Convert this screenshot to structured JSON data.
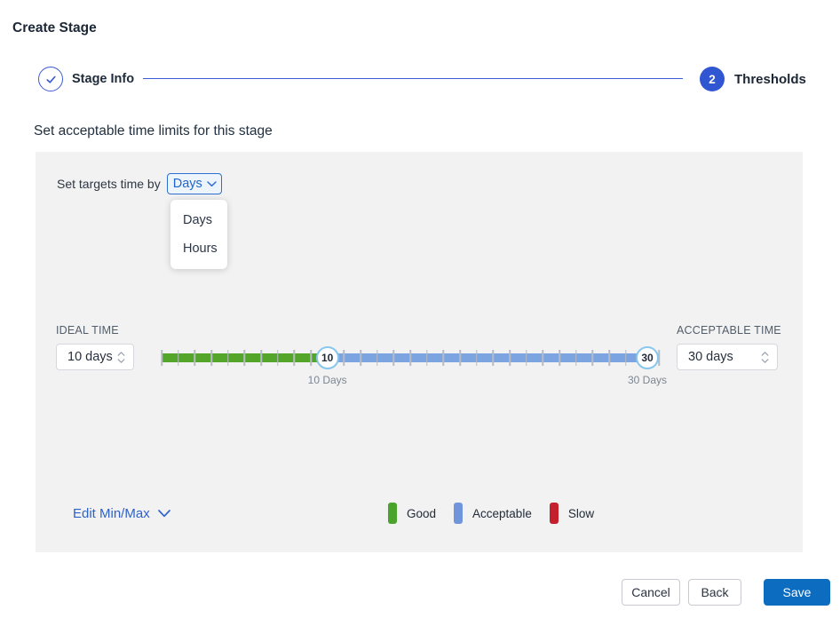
{
  "page_title": "Create Stage",
  "stepper": {
    "steps": [
      {
        "label": "Stage Info",
        "status": "complete",
        "icon": "check-icon"
      },
      {
        "label": "Thresholds",
        "status": "active",
        "number": "2"
      }
    ]
  },
  "section_heading": "Set acceptable time limits for this stage",
  "panel": {
    "targets_label": "Set targets time by",
    "unit_dropdown": {
      "value": "Days",
      "open": true,
      "options": [
        "Days",
        "Hours"
      ]
    },
    "ideal_time": {
      "label": "IDEAL TIME",
      "value": "10 days"
    },
    "acceptable_time": {
      "label": "ACCEPTABLE TIME",
      "value": "30 days"
    },
    "slider": {
      "min": 0,
      "max": 30,
      "tick_count": 31,
      "ideal_value": 10,
      "acceptable_value": 30,
      "ideal_handle_label": "10",
      "acceptable_handle_label": "30",
      "ideal_caption": "10 Days",
      "acceptable_caption": "30 Days"
    },
    "edit_minmax_label": "Edit Min/Max",
    "legend": [
      {
        "label": "Good",
        "color": "#4aa32b"
      },
      {
        "label": "Acceptable",
        "color": "#7195dd"
      },
      {
        "label": "Slow",
        "color": "#c5202e"
      }
    ]
  },
  "footer": {
    "cancel_label": "Cancel",
    "back_label": "Back",
    "save_label": "Save"
  },
  "colors": {
    "stepper_blue": "#3156d2",
    "link_blue": "#2e62c9",
    "save_blue": "#0c6cc0",
    "track_green": "#54a62b",
    "track_blue": "#7ba4e0",
    "handle_border": "#87c7ed",
    "panel_bg": "#f2f2f2"
  }
}
